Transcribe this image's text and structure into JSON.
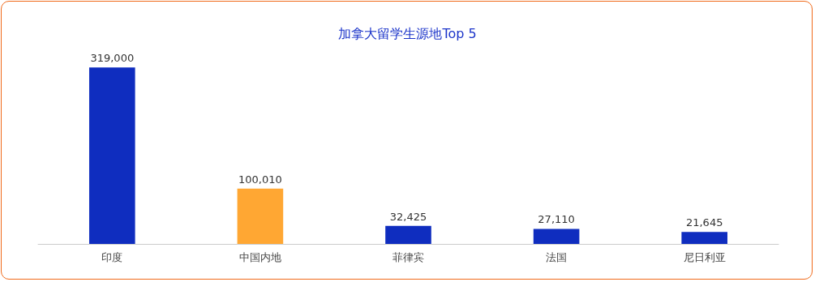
{
  "chart_data": {
    "type": "bar",
    "title": "加拿大留学生源地Top 5",
    "categories": [
      "印度",
      "中国内地",
      "菲律宾",
      "法国",
      "尼日利亚"
    ],
    "values": [
      319000,
      100010,
      32425,
      27110,
      21645
    ],
    "colors": [
      "#0f2dbf",
      "#ffa733",
      "#0f2dbf",
      "#0f2dbf",
      "#0f2dbf"
    ],
    "value_labels": [
      "319,000",
      "100,010",
      "32,425",
      "27,110",
      "21,645"
    ],
    "tick_labels": "x"
  }
}
